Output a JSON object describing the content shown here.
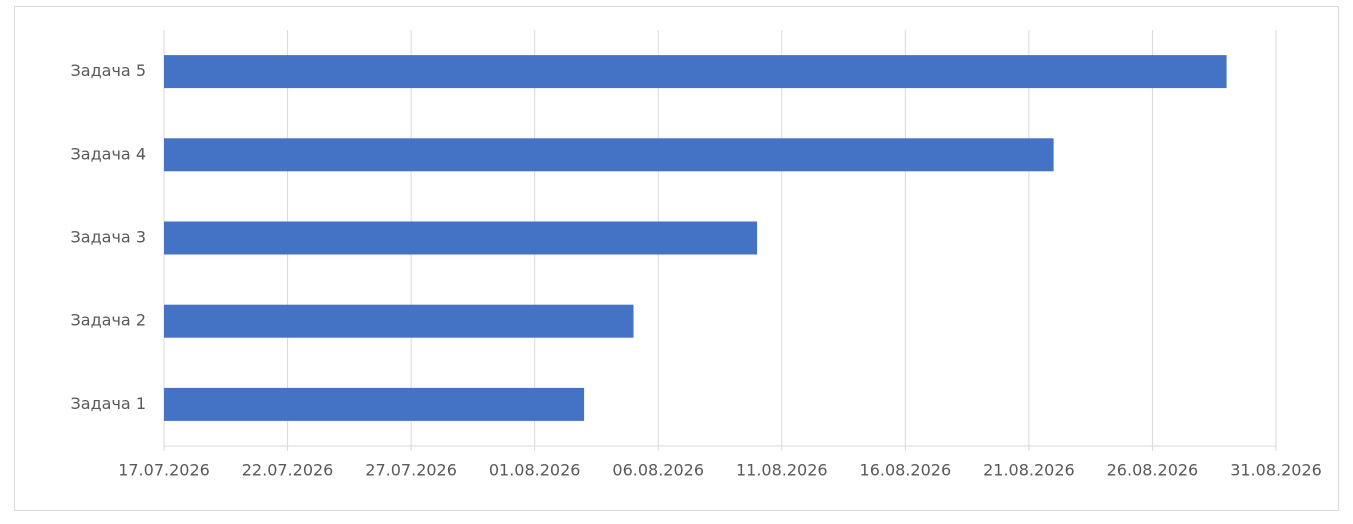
{
  "chart_data": {
    "type": "bar",
    "orientation": "horizontal",
    "categories": [
      "Задача 1",
      "Задача 2",
      "Задача 3",
      "Задача 4",
      "Задача 5"
    ],
    "values": [
      "03.08.2026",
      "05.08.2026",
      "10.08.2026",
      "22.08.2026",
      "29.08.2026"
    ],
    "color": "#4472c4",
    "xlim": [
      "17.07.2026",
      "31.08.2026"
    ],
    "xticks": [
      "17.07.2026",
      "22.07.2026",
      "27.07.2026",
      "01.08.2026",
      "06.08.2026",
      "11.08.2026",
      "16.08.2026",
      "21.08.2026",
      "26.08.2026",
      "31.08.2026"
    ],
    "grid": true
  }
}
